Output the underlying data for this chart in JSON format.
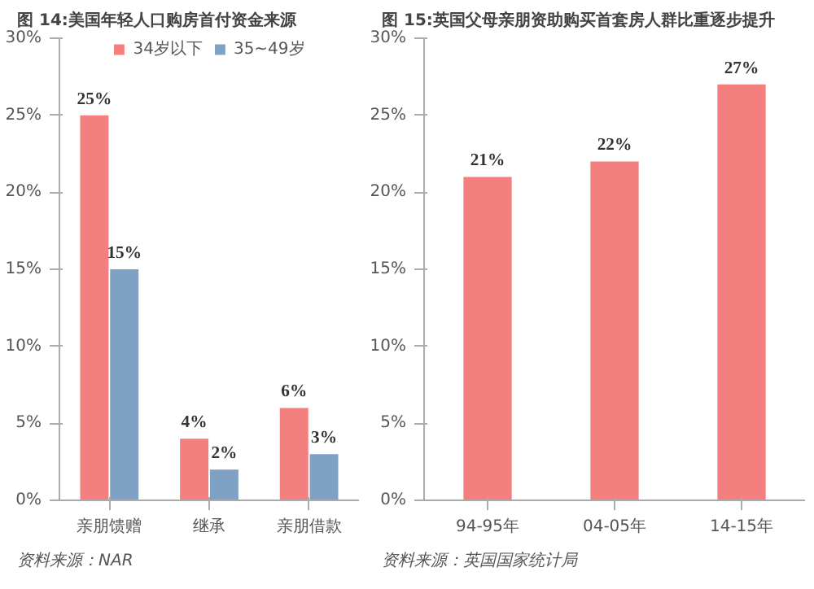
{
  "chart_data": [
    {
      "type": "bar",
      "title": "图 14:美国年轻人口购房首付资金来源",
      "categories": [
        "亲朋馈赠",
        "继承",
        "亲朋借款"
      ],
      "series": [
        {
          "name": "34岁以下",
          "color": "#f47f7f",
          "values": [
            25,
            4,
            6
          ],
          "value_labels": [
            "25%",
            "4%",
            "6%"
          ]
        },
        {
          "name": "35~49岁",
          "color": "#7ea1c4",
          "values": [
            15,
            2,
            3
          ],
          "value_labels": [
            "15%",
            "2%",
            "3%"
          ]
        }
      ],
      "ylim": [
        0,
        30
      ],
      "yticks": [
        {
          "value": 0,
          "label": "0%"
        },
        {
          "value": 5,
          "label": "5%"
        },
        {
          "value": 10,
          "label": "10%"
        },
        {
          "value": 15,
          "label": "15%"
        },
        {
          "value": 20,
          "label": "20%"
        },
        {
          "value": 25,
          "label": "25%"
        },
        {
          "value": 30,
          "label": "30%"
        }
      ],
      "grid": false,
      "legend": "top",
      "annotations": [
        "资料来源：NAR"
      ]
    },
    {
      "type": "bar",
      "title": "图 15:英国父母亲朋资助购买首套房人群比重逐步提升",
      "categories": [
        "94-95年",
        "04-05年",
        "14-15年"
      ],
      "series": [
        {
          "color": "#f47f7f",
          "values": [
            21,
            22,
            27
          ],
          "value_labels": [
            "21%",
            "22%",
            "27%"
          ]
        }
      ],
      "ylim": [
        0,
        30
      ],
      "yticks": [
        {
          "value": 0,
          "label": "0%"
        },
        {
          "value": 5,
          "label": "5%"
        },
        {
          "value": 10,
          "label": "10%"
        },
        {
          "value": 15,
          "label": "15%"
        },
        {
          "value": 20,
          "label": "20%"
        },
        {
          "value": 25,
          "label": "25%"
        },
        {
          "value": 30,
          "label": "30%"
        }
      ],
      "grid": false,
      "annotations": [
        "资料来源：英国国家统计局"
      ]
    }
  ]
}
